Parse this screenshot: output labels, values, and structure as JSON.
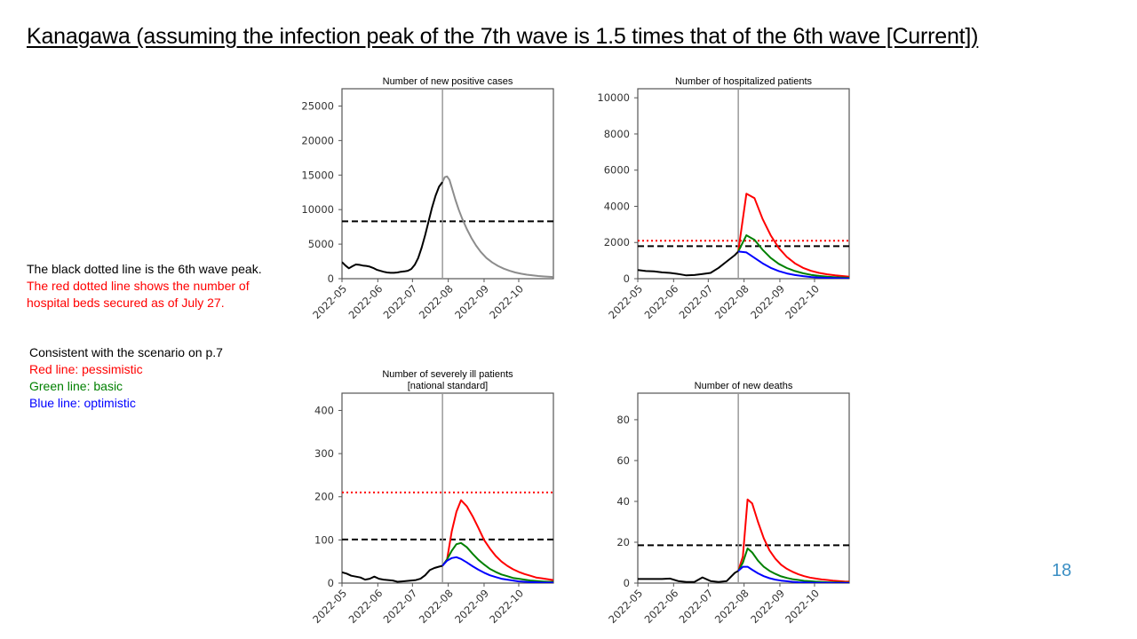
{
  "slide": {
    "title": "Kanagawa (assuming the infection peak of the 7th wave is 1.5 times that of the 6th wave [Current])",
    "page_number": "18",
    "notes": {
      "black_line": "The black dotted line is the 6th wave peak.",
      "red_line_1": "The red dotted line shows the number of",
      "red_line_2": "hospital beds secured as of July 27.",
      "scenario": "Consistent with the scenario on p.7",
      "legend_red": "Red line: pessimistic",
      "legend_green": "Green line: basic",
      "legend_blue": "Blue line: optimistic"
    }
  },
  "colors": {
    "pessimistic": "#ff0000",
    "basic": "#008000",
    "optimistic": "#0000ff",
    "observed": "#000000",
    "projection_single": "#8c8c8c",
    "current_line": "#999999",
    "page_number": "#3b8fc4"
  },
  "chart_data": [
    {
      "id": "new-positive-cases",
      "type": "line",
      "title": [
        "Number of new positive cases"
      ],
      "xlabel": "",
      "ylabel": "",
      "x_unit": "days since 2022-05-01",
      "xlim": [
        0,
        183
      ],
      "x_ticks": [
        0,
        31,
        61,
        92,
        123,
        153
      ],
      "x_tick_labels": [
        "2022-05",
        "2022-06",
        "2022-07",
        "2022-08",
        "2022-09",
        "2022-10"
      ],
      "ylim": [
        0,
        27500
      ],
      "y_ticks": [
        0,
        5000,
        10000,
        15000,
        20000,
        25000
      ],
      "y_tick_labels": [
        "0",
        "5000",
        "10000",
        "15000",
        "20000",
        "25000"
      ],
      "current_date_x": 87,
      "reference_lines": [
        {
          "name": "6th wave peak",
          "y": 8300,
          "color": "#000000",
          "style": "dashed"
        }
      ],
      "series": [
        {
          "name": "observed",
          "color": "#000000",
          "x": [
            0,
            3,
            6,
            9,
            12,
            15,
            18,
            21,
            24,
            27,
            30,
            33,
            36,
            39,
            42,
            45,
            48,
            51,
            54,
            57,
            60,
            63,
            66,
            69,
            72,
            75,
            78,
            81,
            84,
            87
          ],
          "y": [
            2400,
            1900,
            1500,
            1800,
            2050,
            2000,
            1900,
            1850,
            1750,
            1550,
            1300,
            1150,
            1000,
            900,
            850,
            850,
            900,
            1000,
            1050,
            1150,
            1400,
            2000,
            3000,
            4500,
            6300,
            8300,
            10300,
            12000,
            13300,
            14000
          ]
        },
        {
          "name": "projection",
          "color": "#8c8c8c",
          "x": [
            87,
            89,
            91,
            93,
            95,
            98,
            101,
            104,
            108,
            112,
            116,
            120,
            125,
            130,
            135,
            140,
            145,
            150,
            155,
            160,
            165,
            170,
            175,
            183
          ],
          "y": [
            14000,
            14700,
            14800,
            14300,
            13200,
            11500,
            10000,
            8700,
            7200,
            5900,
            4800,
            3900,
            3000,
            2350,
            1850,
            1450,
            1150,
            900,
            720,
            580,
            470,
            380,
            320,
            250
          ]
        }
      ]
    },
    {
      "id": "hospitalized-patients",
      "type": "line",
      "title": [
        "Number of hospitalized patients"
      ],
      "xlabel": "",
      "ylabel": "",
      "x_unit": "days since 2022-05-01",
      "xlim": [
        0,
        183
      ],
      "x_ticks": [
        0,
        31,
        61,
        92,
        123,
        153
      ],
      "x_tick_labels": [
        "2022-05",
        "2022-06",
        "2022-07",
        "2022-08",
        "2022-09",
        "2022-10"
      ],
      "ylim": [
        0,
        10500
      ],
      "y_ticks": [
        0,
        2000,
        4000,
        6000,
        8000,
        10000
      ],
      "y_tick_labels": [
        "0",
        "2000",
        "4000",
        "6000",
        "8000",
        "10000"
      ],
      "current_date_x": 87,
      "reference_lines": [
        {
          "name": "hospital beds secured (July 27)",
          "y": 2100,
          "color": "#ff0000",
          "style": "dotted"
        },
        {
          "name": "6th wave peak",
          "y": 1800,
          "color": "#000000",
          "style": "dashed"
        }
      ],
      "series": [
        {
          "name": "observed",
          "color": "#000000",
          "x": [
            0,
            7,
            14,
            21,
            28,
            35,
            42,
            49,
            56,
            63,
            70,
            77,
            84,
            87
          ],
          "y": [
            480,
            420,
            400,
            350,
            320,
            260,
            180,
            200,
            260,
            320,
            600,
            950,
            1300,
            1500
          ]
        },
        {
          "name": "pessimistic",
          "color": "#ff0000",
          "x": [
            87,
            94,
            101,
            108,
            115,
            122,
            129,
            136,
            143,
            150,
            157,
            164,
            171,
            178,
            183
          ],
          "y": [
            1500,
            4700,
            4450,
            3300,
            2400,
            1700,
            1200,
            850,
            600,
            430,
            320,
            240,
            180,
            140,
            110
          ]
        },
        {
          "name": "basic",
          "color": "#008000",
          "x": [
            87,
            94,
            101,
            108,
            115,
            122,
            129,
            136,
            143,
            150,
            157,
            164,
            171,
            178,
            183
          ],
          "y": [
            1500,
            2400,
            2150,
            1600,
            1150,
            820,
            590,
            420,
            300,
            210,
            150,
            110,
            80,
            60,
            50
          ]
        },
        {
          "name": "optimistic",
          "color": "#0000ff",
          "x": [
            87,
            94,
            101,
            108,
            115,
            122,
            129,
            136,
            143,
            150,
            157,
            164,
            171,
            178,
            183
          ],
          "y": [
            1500,
            1450,
            1150,
            850,
            600,
            420,
            290,
            200,
            140,
            95,
            65,
            45,
            30,
            20,
            15
          ]
        }
      ]
    },
    {
      "id": "severely-ill-patients",
      "type": "line",
      "title": [
        "Number of severely ill patients",
        "[national standard]"
      ],
      "xlabel": "",
      "ylabel": "",
      "x_unit": "days since 2022-05-01",
      "xlim": [
        0,
        183
      ],
      "x_ticks": [
        0,
        31,
        61,
        92,
        123,
        153
      ],
      "x_tick_labels": [
        "2022-05",
        "2022-06",
        "2022-07",
        "2022-08",
        "2022-09",
        "2022-10"
      ],
      "ylim": [
        0,
        440
      ],
      "y_ticks": [
        0,
        100,
        200,
        300,
        400
      ],
      "y_tick_labels": [
        "0",
        "100",
        "200",
        "300",
        "400"
      ],
      "current_date_x": 87,
      "reference_lines": [
        {
          "name": "hospital beds secured (July 27)",
          "y": 210,
          "color": "#ff0000",
          "style": "dotted"
        },
        {
          "name": "6th wave peak",
          "y": 101,
          "color": "#000000",
          "style": "dashed"
        }
      ],
      "series": [
        {
          "name": "observed",
          "color": "#000000",
          "x": [
            0,
            4,
            8,
            12,
            16,
            20,
            24,
            28,
            32,
            36,
            40,
            44,
            48,
            52,
            56,
            60,
            64,
            68,
            72,
            76,
            80,
            84,
            87
          ],
          "y": [
            25,
            22,
            17,
            15,
            13,
            8,
            10,
            15,
            10,
            8,
            7,
            6,
            3,
            4,
            5,
            6,
            7,
            10,
            18,
            30,
            35,
            38,
            40
          ]
        },
        {
          "name": "pessimistic",
          "color": "#ff0000",
          "x": [
            87,
            91,
            95,
            99,
            103,
            108,
            113,
            118,
            123,
            128,
            133,
            138,
            143,
            148,
            153,
            158,
            163,
            168,
            173,
            178,
            183
          ],
          "y": [
            40,
            55,
            120,
            165,
            192,
            178,
            155,
            128,
            100,
            80,
            63,
            50,
            40,
            32,
            26,
            21,
            17,
            13,
            11,
            9,
            7
          ]
        },
        {
          "name": "basic",
          "color": "#008000",
          "x": [
            87,
            91,
            95,
            99,
            103,
            108,
            113,
            118,
            123,
            128,
            133,
            138,
            143,
            148,
            153,
            158,
            163,
            168,
            173,
            178,
            183
          ],
          "y": [
            40,
            55,
            75,
            90,
            93,
            83,
            68,
            54,
            43,
            33,
            26,
            20,
            16,
            12,
            10,
            8,
            6,
            5,
            4,
            3,
            3
          ]
        },
        {
          "name": "optimistic",
          "color": "#0000ff",
          "x": [
            87,
            91,
            95,
            99,
            103,
            108,
            113,
            118,
            123,
            128,
            133,
            138,
            143,
            148,
            153,
            158,
            163,
            168,
            173,
            178,
            183
          ],
          "y": [
            40,
            52,
            58,
            60,
            56,
            48,
            39,
            31,
            24,
            18,
            14,
            10,
            8,
            6,
            4,
            3,
            2,
            2,
            1,
            1,
            1
          ]
        }
      ]
    },
    {
      "id": "new-deaths",
      "type": "line",
      "title": [
        "Number of new deaths"
      ],
      "xlabel": "",
      "ylabel": "",
      "x_unit": "days since 2022-05-01",
      "xlim": [
        0,
        183
      ],
      "x_ticks": [
        0,
        31,
        61,
        92,
        123,
        153
      ],
      "x_tick_labels": [
        "2022-05",
        "2022-06",
        "2022-07",
        "2022-08",
        "2022-09",
        "2022-10"
      ],
      "ylim": [
        0,
        93
      ],
      "y_ticks": [
        0,
        20,
        40,
        60,
        80
      ],
      "y_tick_labels": [
        "0",
        "20",
        "40",
        "60",
        "80"
      ],
      "current_date_x": 87,
      "reference_lines": [
        {
          "name": "6th wave peak",
          "y": 18.5,
          "color": "#000000",
          "style": "dashed"
        }
      ],
      "series": [
        {
          "name": "observed",
          "color": "#000000",
          "x": [
            0,
            7,
            14,
            21,
            28,
            35,
            42,
            49,
            56,
            63,
            70,
            77,
            84,
            87
          ],
          "y": [
            2,
            2,
            2,
            2,
            2.2,
            1,
            0.5,
            0.5,
            2.8,
            1,
            0.5,
            1,
            5,
            6
          ]
        },
        {
          "name": "pessimistic",
          "color": "#ff0000",
          "x": [
            87,
            91,
            95,
            99,
            104,
            109,
            114,
            119,
            124,
            129,
            134,
            139,
            144,
            149,
            154,
            159,
            164,
            169,
            174,
            179,
            183
          ],
          "y": [
            6,
            13,
            41,
            39,
            30,
            22,
            16,
            12,
            9,
            7,
            5.5,
            4.3,
            3.4,
            2.7,
            2.2,
            1.8,
            1.5,
            1.2,
            1,
            0.8,
            0.7
          ]
        },
        {
          "name": "basic",
          "color": "#008000",
          "x": [
            87,
            91,
            95,
            99,
            104,
            109,
            114,
            119,
            124,
            129,
            134,
            139,
            144,
            149,
            154,
            159,
            164,
            169,
            174,
            179,
            183
          ],
          "y": [
            6,
            10,
            17,
            15,
            11,
            8,
            6,
            4.5,
            3.3,
            2.5,
            1.9,
            1.5,
            1.1,
            0.9,
            0.7,
            0.5,
            0.4,
            0.3,
            0.3,
            0.2,
            0.2
          ]
        },
        {
          "name": "optimistic",
          "color": "#0000ff",
          "x": [
            87,
            91,
            95,
            99,
            104,
            109,
            114,
            119,
            124,
            129,
            134,
            139,
            144,
            149,
            154,
            159,
            164,
            169,
            174,
            179,
            183
          ],
          "y": [
            6,
            8,
            8,
            6.5,
            4.8,
            3.4,
            2.4,
            1.7,
            1.2,
            0.9,
            0.6,
            0.4,
            0.3,
            0.2,
            0.15,
            0.1,
            0.1,
            0.05,
            0.05,
            0.03,
            0.02
          ]
        }
      ]
    }
  ]
}
